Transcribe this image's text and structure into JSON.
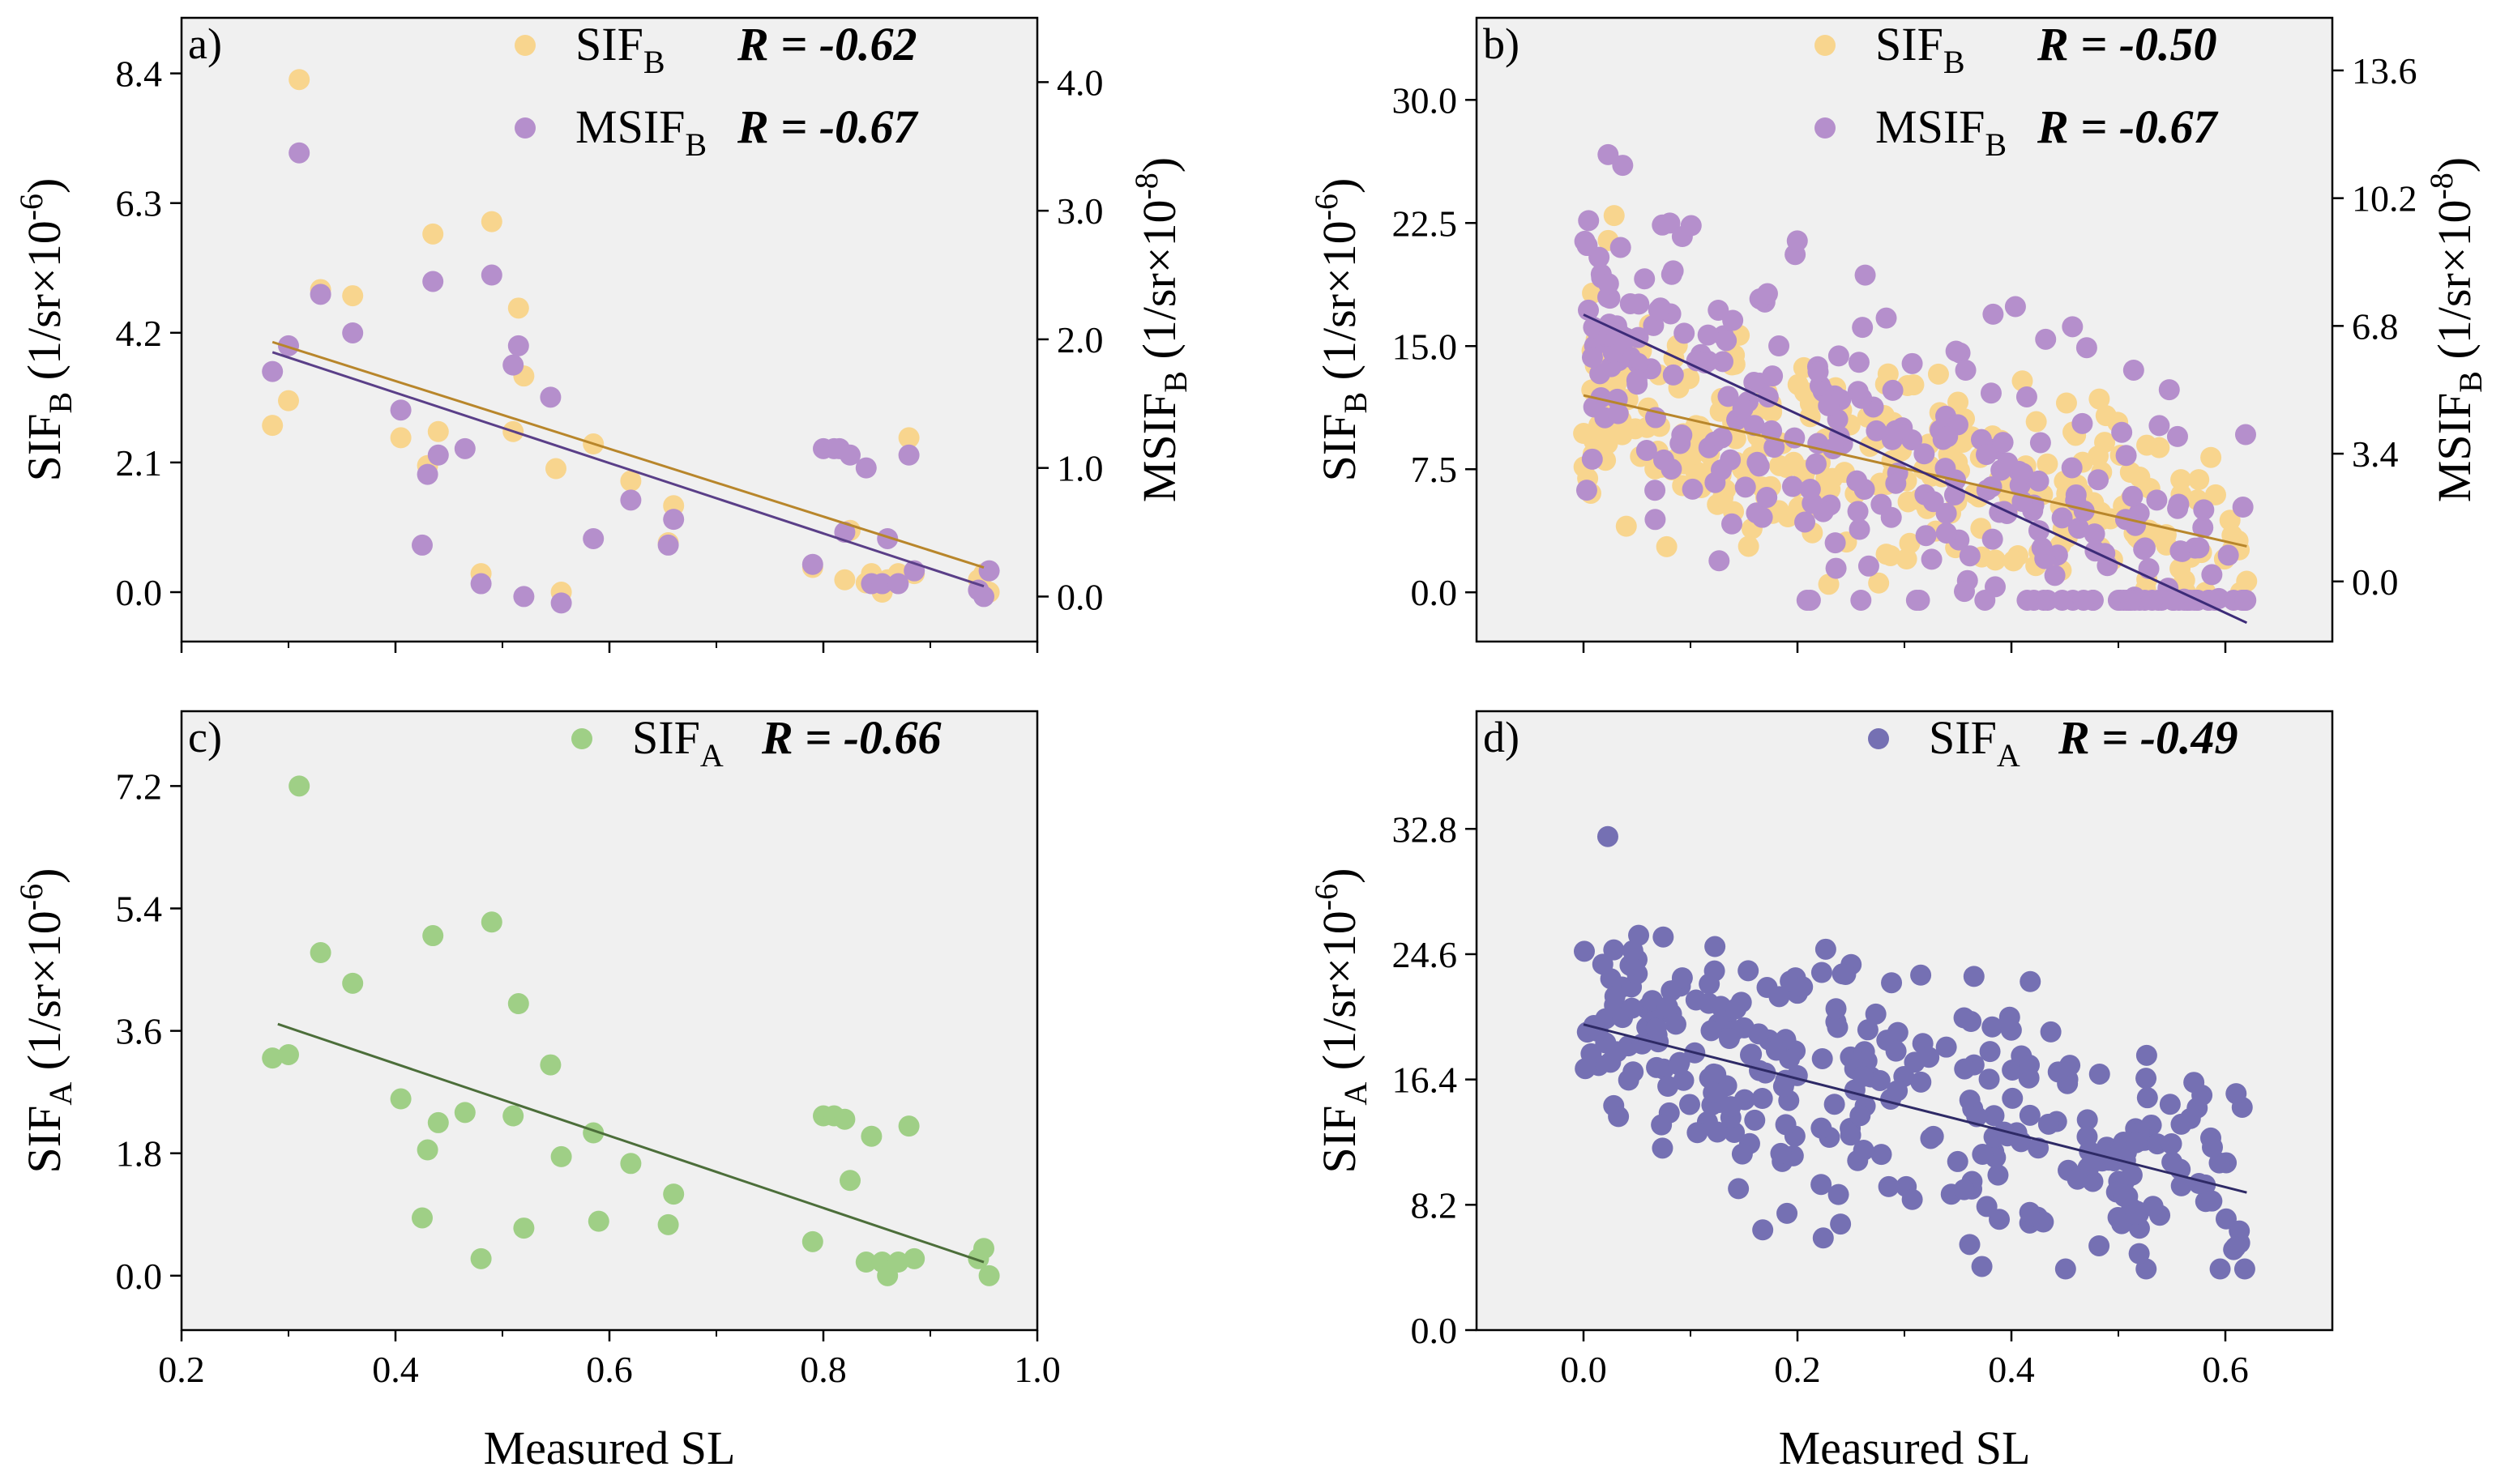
{
  "chart_data": [
    {
      "panel": "a)",
      "type": "scatter",
      "xlabel": "",
      "ylabel": {
        "base": "SIF",
        "sub": "B",
        "unit_pre": " (1/sr×10",
        "unit_sup": "-6",
        "unit_post": ")"
      },
      "y2label": {
        "base": "MSIF",
        "sub": "B",
        "unit_pre": " (1/sr×10",
        "unit_sup": "-8",
        "unit_post": ")"
      },
      "xlim": [
        0.2,
        1.0
      ],
      "ylim": [
        -0.8,
        9.3
      ],
      "y2lim": [
        -0.35,
        4.5
      ],
      "xticks": [
        "0.2",
        "0.4",
        "0.6",
        "0.8",
        "1.0"
      ],
      "xtick_values": [
        0.2,
        0.4,
        0.6,
        0.8,
        1.0
      ],
      "show_xtick_labels": false,
      "yticks": [
        "0.0",
        "2.1",
        "4.2",
        "6.3",
        "8.4"
      ],
      "ytick_values": [
        0.0,
        2.1,
        4.2,
        6.3,
        8.4
      ],
      "y2ticks": [
        "0.0",
        "1.0",
        "2.0",
        "3.0",
        "4.0"
      ],
      "y2tick_values": [
        0.0,
        1.0,
        2.0,
        3.0,
        4.0
      ],
      "legend": [
        {
          "base": "SIF",
          "sub": "B",
          "r_text": "R = -0.62",
          "color": "#f8d58e"
        },
        {
          "base": "MSIF",
          "sub": "B",
          "r_text": "R = -0.67",
          "color": "#b58fcc"
        }
      ],
      "series": [
        {
          "name": "SIF_B",
          "axis": "left",
          "color": "#f8d58e",
          "fit_color": "#b8862b",
          "fit": {
            "x": [
              0.285,
              0.95
            ],
            "y": [
              4.05,
              0.4
            ]
          },
          "x": [
            0.285,
            0.3,
            0.31,
            0.33,
            0.36,
            0.405,
            0.43,
            0.435,
            0.44,
            0.48,
            0.49,
            0.51,
            0.515,
            0.52,
            0.55,
            0.555,
            0.585,
            0.62,
            0.655,
            0.66,
            0.79,
            0.82,
            0.825,
            0.84,
            0.845,
            0.855,
            0.86,
            0.87,
            0.88,
            0.885,
            0.945,
            0.95,
            0.955
          ],
          "y": [
            2.7,
            3.1,
            8.3,
            4.9,
            4.8,
            2.5,
            2.05,
            5.8,
            2.6,
            0.3,
            6.0,
            2.6,
            4.6,
            3.5,
            2.0,
            0.0,
            2.4,
            1.8,
            0.8,
            1.4,
            0.4,
            0.2,
            1.0,
            0.15,
            0.3,
            0.0,
            0.2,
            0.3,
            2.5,
            0.3,
            0.2,
            0.3,
            0.0
          ]
        },
        {
          "name": "MSIF_B",
          "axis": "right",
          "color": "#b58fcc",
          "fit_color": "#5a3f88",
          "fit": {
            "x": [
              0.285,
              0.95
            ],
            "y": [
              1.9,
              0.08
            ]
          },
          "x": [
            0.285,
            0.3,
            0.31,
            0.33,
            0.36,
            0.405,
            0.425,
            0.43,
            0.435,
            0.44,
            0.465,
            0.48,
            0.49,
            0.51,
            0.515,
            0.52,
            0.545,
            0.555,
            0.585,
            0.62,
            0.655,
            0.66,
            0.79,
            0.8,
            0.81,
            0.815,
            0.82,
            0.825,
            0.84,
            0.845,
            0.855,
            0.86,
            0.87,
            0.88,
            0.885,
            0.945,
            0.95,
            0.955
          ],
          "y": [
            1.75,
            1.95,
            3.45,
            2.35,
            2.05,
            1.45,
            0.4,
            0.95,
            2.45,
            1.1,
            1.15,
            0.1,
            2.5,
            1.8,
            1.95,
            0.0,
            1.55,
            -0.05,
            0.45,
            0.75,
            0.4,
            0.6,
            0.25,
            1.15,
            1.15,
            1.15,
            0.5,
            1.1,
            1.0,
            0.1,
            0.1,
            0.45,
            0.1,
            1.1,
            0.2,
            0.05,
            0.0,
            0.2
          ]
        }
      ]
    },
    {
      "panel": "b)",
      "type": "scatter",
      "xlabel": "",
      "ylabel": {
        "base": "SIF",
        "sub": "B",
        "unit_pre": " (1/sr×10",
        "unit_sup": "-6",
        "unit_post": ")"
      },
      "y2label": {
        "base": "MSIF",
        "sub": "B",
        "unit_pre": " (1/sr×10",
        "unit_sup": "-8",
        "unit_post": ")"
      },
      "xlim": [
        -0.1,
        0.7
      ],
      "ylim": [
        -3.0,
        35.0
      ],
      "y2lim": [
        -1.6,
        15.0
      ],
      "xticks": [
        "0.0",
        "0.2",
        "0.4",
        "0.6"
      ],
      "xtick_values": [
        0.0,
        0.2,
        0.4,
        0.6
      ],
      "show_xtick_labels": false,
      "yticks": [
        "0.0",
        "7.5",
        "15.0",
        "22.5",
        "30.0"
      ],
      "ytick_values": [
        0.0,
        7.5,
        15.0,
        22.5,
        30.0
      ],
      "y2ticks": [
        "0.0",
        "3.4",
        "6.8",
        "10.2",
        "13.6"
      ],
      "y2tick_values": [
        0.0,
        3.4,
        6.8,
        10.2,
        13.6
      ],
      "legend": [
        {
          "base": "SIF",
          "sub": "B",
          "r_text": "R = -0.50",
          "color": "#f8d58e"
        },
        {
          "base": "MSIF",
          "sub": "B",
          "r_text": "R = -0.67",
          "color": "#b58fcc"
        }
      ],
      "series": [
        {
          "name": "SIF_B",
          "axis": "left",
          "color": "#f8d58e",
          "fit_color": "#b8862b",
          "fit": {
            "x": [
              0.0,
              0.62
            ],
            "y": [
              12.0,
              2.8
            ]
          },
          "generated": {
            "n": 300,
            "seed": 11,
            "x_range": [
              0.0,
              0.62
            ],
            "slope": -14.8,
            "intercept": 12.0,
            "noise": 3.2,
            "min": 0.0,
            "max": 24.0
          }
        },
        {
          "name": "MSIF_B",
          "axis": "right",
          "color": "#b58fcc",
          "fit_color": "#3c2b78",
          "fit": {
            "x": [
              0.0,
              0.62
            ],
            "y": [
              7.1,
              -1.1
            ]
          },
          "generated": {
            "n": 300,
            "seed": 23,
            "x_range": [
              0.0,
              0.62
            ],
            "slope": -13.2,
            "intercept": 7.1,
            "noise": 2.2,
            "min": -0.5,
            "max": 12.3
          }
        }
      ]
    },
    {
      "panel": "c)",
      "type": "scatter",
      "xlabel": "Measured SL",
      "ylabel": {
        "base": "SIF",
        "sub": "A",
        "unit_pre": " (1/sr×10",
        "unit_sup": "-6",
        "unit_post": ")"
      },
      "xlim": [
        0.2,
        1.0
      ],
      "ylim": [
        -0.8,
        8.3
      ],
      "xticks": [
        "0.2",
        "0.4",
        "0.6",
        "0.8",
        "1.0"
      ],
      "xtick_values": [
        0.2,
        0.4,
        0.6,
        0.8,
        1.0
      ],
      "show_xtick_labels": true,
      "yticks": [
        "0.0",
        "1.8",
        "3.6",
        "5.4",
        "7.2"
      ],
      "ytick_values": [
        0.0,
        1.8,
        3.6,
        5.4,
        7.2
      ],
      "legend": [
        {
          "base": "SIF",
          "sub": "A",
          "r_text": "R = -0.66",
          "color": "#9fcf86"
        }
      ],
      "series": [
        {
          "name": "SIF_A",
          "axis": "left",
          "color": "#9fcf86",
          "fit_color": "#4c6e3a",
          "fit": {
            "x": [
              0.29,
              0.95
            ],
            "y": [
              3.7,
              0.2
            ]
          },
          "x": [
            0.285,
            0.3,
            0.31,
            0.33,
            0.36,
            0.405,
            0.425,
            0.43,
            0.435,
            0.44,
            0.465,
            0.48,
            0.49,
            0.51,
            0.515,
            0.52,
            0.545,
            0.555,
            0.585,
            0.59,
            0.62,
            0.655,
            0.66,
            0.79,
            0.8,
            0.81,
            0.82,
            0.825,
            0.84,
            0.845,
            0.855,
            0.86,
            0.87,
            0.88,
            0.885,
            0.945,
            0.95,
            0.955
          ],
          "y": [
            3.2,
            3.25,
            7.2,
            4.75,
            4.3,
            2.6,
            0.85,
            1.85,
            5.0,
            2.25,
            2.4,
            0.25,
            5.2,
            2.35,
            4.0,
            0.7,
            3.1,
            1.75,
            2.1,
            0.8,
            1.65,
            0.75,
            1.2,
            0.5,
            2.35,
            2.35,
            2.3,
            1.4,
            0.2,
            2.05,
            0.2,
            0.0,
            0.2,
            2.2,
            0.25,
            0.25,
            0.4,
            0.0
          ]
        }
      ]
    },
    {
      "panel": "d)",
      "type": "scatter",
      "xlabel": "Measured SL",
      "ylabel": {
        "base": "SIF",
        "sub": "A",
        "unit_pre": " (1/sr×10",
        "unit_sup": "-6",
        "unit_post": ")"
      },
      "xlim": [
        -0.1,
        0.7
      ],
      "ylim": [
        0.0,
        40.5
      ],
      "xticks": [
        "0.0",
        "0.2",
        "0.4",
        "0.6"
      ],
      "xtick_values": [
        0.0,
        0.2,
        0.4,
        0.6
      ],
      "show_xtick_labels": true,
      "yticks": [
        "0.0",
        "8.2",
        "16.4",
        "24.6",
        "32.8"
      ],
      "ytick_values": [
        0.0,
        8.2,
        16.4,
        24.6,
        32.8
      ],
      "legend": [
        {
          "base": "SIF",
          "sub": "A",
          "r_text": "R = -0.49",
          "color": "#7570b3"
        }
      ],
      "series": [
        {
          "name": "SIF_A",
          "axis": "left",
          "color": "#7570b3",
          "fit_color": "#2e2a66",
          "fit": {
            "x": [
              0.0,
              0.62
            ],
            "y": [
              20.0,
              9.0
            ]
          },
          "generated": {
            "n": 300,
            "seed": 37,
            "x_range": [
              0.0,
              0.62
            ],
            "slope": -17.7,
            "intercept": 20.0,
            "noise": 4.2,
            "min": 4.0,
            "max": 36.0
          }
        }
      ]
    }
  ]
}
